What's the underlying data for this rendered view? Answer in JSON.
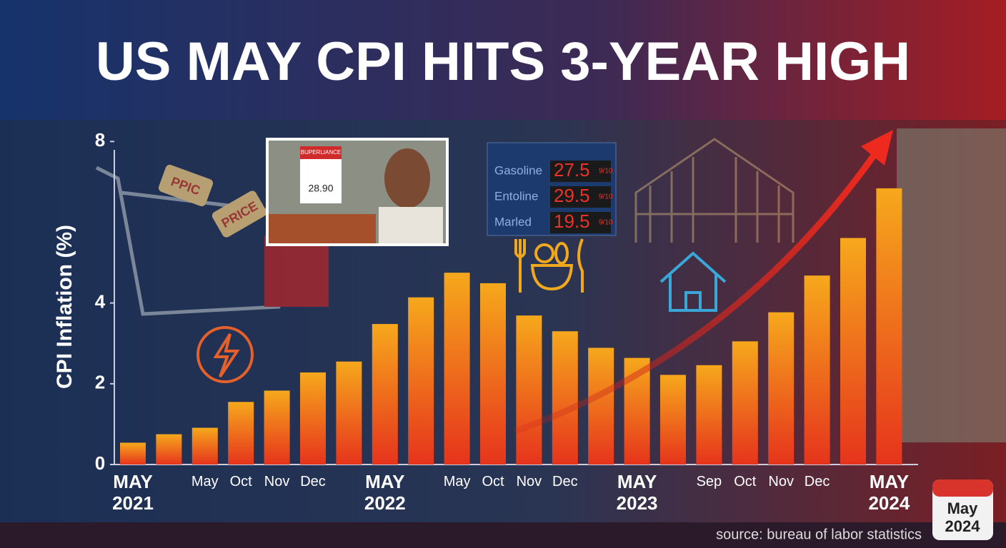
{
  "chart_data": {
    "type": "bar",
    "title": "US MAY CPI HITS 3-YEAR HIGH",
    "y_label": "CPI Inflation (%)",
    "source": "source: bureau of labor statistics",
    "badge": {
      "month": "May",
      "year": "2024"
    },
    "gas_sign": [
      {
        "name": "Gasoline",
        "price": "27.5",
        "fraction": "9/10"
      },
      {
        "name": "Entoline",
        "price": "29.5",
        "fraction": "9/10"
      },
      {
        "name": "Marled",
        "price": "19.5",
        "fraction": "9/10"
      }
    ],
    "photo_tags": {
      "shelf_sign": "BUPERLIANCE",
      "shelf_price": "28.90",
      "tag_1": "PPIC",
      "tag_2": "PRICE"
    },
    "categories": [
      "MAY 2021",
      null,
      "May",
      "Oct",
      "Nov",
      "Dec",
      null,
      "MAY 2022",
      null,
      "May",
      "Oct",
      "Nov",
      "Dec",
      null,
      "MAY 2023",
      null,
      "Sep",
      "Oct",
      "Nov",
      "Dec",
      null,
      "MAY 2024"
    ],
    "values": [
      0.54,
      0.75,
      0.91,
      1.55,
      1.83,
      2.28,
      2.55,
      3.48,
      4.14,
      4.75,
      4.49,
      3.69,
      3.3,
      2.89,
      2.64,
      2.22,
      2.46,
      3.05,
      3.77,
      4.68,
      5.61,
      6.84
    ],
    "ylim": [
      0,
      8.5
    ],
    "yticks": [
      0,
      2,
      4,
      8
    ]
  }
}
